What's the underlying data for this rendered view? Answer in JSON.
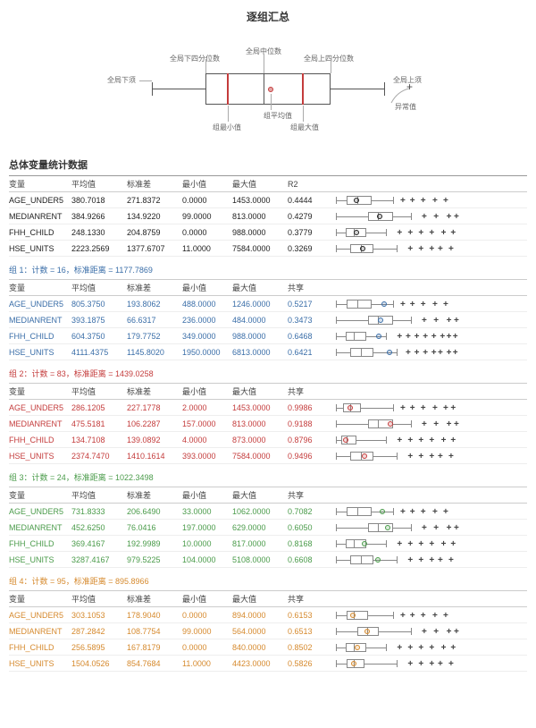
{
  "title": "逐组汇总",
  "legend": {
    "labels": {
      "lower_whisker": "全局下须",
      "q1": "全局下四分位数",
      "median": "全局中位数",
      "q3": "全局上四分位数",
      "upper_whisker": "全局上须",
      "mean": "组平均值",
      "min": "组最小值",
      "max": "组最大值",
      "outlier": "异常值"
    }
  },
  "columns_main": [
    "变量",
    "平均值",
    "标准差",
    "最小值",
    "最大值",
    "R2"
  ],
  "columns_group": [
    "变量",
    "平均值",
    "标准差",
    "最小值",
    "最大值",
    "共享"
  ],
  "main_section_title": "总体变量统计数据",
  "colors": {
    "black": "#222222",
    "blue": "#3a6ea8",
    "red": "#c43c3c",
    "green": "#4a9b4a",
    "orange": "#d68a2e"
  },
  "groups": [
    {
      "header": null,
      "color": "black",
      "rows": [
        {
          "v": "AGE_UNDER5",
          "mean": "380.7018",
          "std": "271.8372",
          "min": "0.0000",
          "max": "1453.0000",
          "r": "0.4444",
          "bp": {
            "w0": 5,
            "w1": 58,
            "b0": 15,
            "b1": 38,
            "m": 25,
            "d": 24,
            "o": [
              65,
              74,
              84,
              95,
              105
            ]
          }
        },
        {
          "v": "MEDIANRENT",
          "mean": "384.9266",
          "std": "134.9220",
          "min": "99.0000",
          "max": "813.0000",
          "r": "0.4279",
          "bp": {
            "w0": 5,
            "w1": 75,
            "b0": 35,
            "b1": 58,
            "m": 44,
            "d": 46,
            "o": [
              85,
              96,
              108,
              115
            ]
          }
        },
        {
          "v": "FHH_CHILD",
          "mean": "248.1330",
          "std": "204.8759",
          "min": "0.0000",
          "max": "988.0000",
          "r": "0.3779",
          "bp": {
            "w0": 5,
            "w1": 52,
            "b0": 14,
            "b1": 33,
            "m": 22,
            "d": 24,
            "o": [
              62,
              72,
              82,
              92,
              103,
              112
            ]
          }
        },
        {
          "v": "HSE_UNITS",
          "mean": "2223.2569",
          "std": "1377.6707",
          "min": "11.0000",
          "max": "7584.0000",
          "r": "0.3269",
          "bp": {
            "w0": 5,
            "w1": 62,
            "b0": 18,
            "b1": 40,
            "m": 28,
            "d": 30,
            "o": [
              72,
              82,
              92,
              100,
              110
            ]
          }
        }
      ]
    },
    {
      "header": "组 1：计数 = 16，标准距离 = 1177.7869",
      "color": "blue",
      "rows": [
        {
          "v": "AGE_UNDER5",
          "mean": "805.3750",
          "std": "193.8062",
          "min": "488.0000",
          "max": "1246.0000",
          "r": "0.5217",
          "bp": {
            "w0": 5,
            "w1": 58,
            "b0": 15,
            "b1": 38,
            "m": 25,
            "d": 50,
            "o": [
              65,
              74,
              84,
              95,
              105
            ]
          }
        },
        {
          "v": "MEDIANRENT",
          "mean": "393.1875",
          "std": "66.6317",
          "min": "236.0000",
          "max": "484.0000",
          "r": "0.3473",
          "bp": {
            "w0": 5,
            "w1": 75,
            "b0": 35,
            "b1": 58,
            "m": 44,
            "d": 47,
            "o": [
              85,
              96,
              108,
              115
            ]
          }
        },
        {
          "v": "FHH_CHILD",
          "mean": "604.3750",
          "std": "179.7752",
          "min": "349.0000",
          "max": "988.0000",
          "r": "0.6468",
          "bp": {
            "w0": 5,
            "w1": 52,
            "b0": 14,
            "b1": 33,
            "m": 22,
            "d": 45,
            "o": [
              62,
              70,
              78,
              86,
              94,
              102,
              108,
              114
            ]
          }
        },
        {
          "v": "HSE_UNITS",
          "mean": "4111.4375",
          "std": "1145.8020",
          "min": "1950.0000",
          "max": "6813.0000",
          "r": "0.6421",
          "bp": {
            "w0": 5,
            "w1": 62,
            "b0": 18,
            "b1": 40,
            "m": 28,
            "d": 55,
            "o": [
              70,
              78,
              86,
              94,
              100,
              108,
              114
            ]
          }
        }
      ]
    },
    {
      "header": "组 2：计数 = 83，标准距离 = 1439.0258",
      "color": "red",
      "rows": [
        {
          "v": "AGE_UNDER5",
          "mean": "286.1205",
          "std": "227.1778",
          "min": "2.0000",
          "max": "1453.0000",
          "r": "0.9986",
          "bp": {
            "w0": 5,
            "w1": 58,
            "b0": 12,
            "b1": 28,
            "m": 18,
            "d": 18,
            "o": [
              65,
              74,
              84,
              95,
              105,
              112
            ]
          }
        },
        {
          "v": "MEDIANRENT",
          "mean": "475.5181",
          "std": "106.2287",
          "min": "157.0000",
          "max": "813.0000",
          "r": "0.9188",
          "bp": {
            "w0": 5,
            "w1": 75,
            "b0": 35,
            "b1": 58,
            "m": 44,
            "d": 56,
            "o": [
              85,
              96,
              108,
              115
            ]
          }
        },
        {
          "v": "FHH_CHILD",
          "mean": "134.7108",
          "std": "139.0892",
          "min": "4.0000",
          "max": "873.0000",
          "r": "0.8796",
          "bp": {
            "w0": 5,
            "w1": 52,
            "b0": 10,
            "b1": 24,
            "m": 15,
            "d": 14,
            "o": [
              62,
              72,
              82,
              92,
              103,
              112
            ]
          }
        },
        {
          "v": "HSE_UNITS",
          "mean": "2374.7470",
          "std": "1410.1614",
          "min": "393.0000",
          "max": "7584.0000",
          "r": "0.9496",
          "bp": {
            "w0": 5,
            "w1": 62,
            "b0": 18,
            "b1": 40,
            "m": 28,
            "d": 32,
            "o": [
              72,
              82,
              92,
              100,
              110
            ]
          }
        }
      ]
    },
    {
      "header": "组 3：计数 = 24，标准距离 = 1022.3498",
      "color": "green",
      "rows": [
        {
          "v": "AGE_UNDER5",
          "mean": "731.8333",
          "std": "206.6490",
          "min": "33.0000",
          "max": "1062.0000",
          "r": "0.7082",
          "bp": {
            "w0": 5,
            "w1": 58,
            "b0": 15,
            "b1": 38,
            "m": 25,
            "d": 48,
            "o": [
              65,
              74,
              84,
              95,
              105
            ]
          }
        },
        {
          "v": "MEDIANRENT",
          "mean": "452.6250",
          "std": "76.0416",
          "min": "197.0000",
          "max": "629.0000",
          "r": "0.6050",
          "bp": {
            "w0": 5,
            "w1": 75,
            "b0": 35,
            "b1": 58,
            "m": 44,
            "d": 53,
            "o": [
              85,
              96,
              108,
              115
            ]
          }
        },
        {
          "v": "FHH_CHILD",
          "mean": "369.4167",
          "std": "192.9989",
          "min": "10.0000",
          "max": "817.0000",
          "r": "0.8168",
          "bp": {
            "w0": 5,
            "w1": 52,
            "b0": 14,
            "b1": 33,
            "m": 22,
            "d": 32,
            "o": [
              62,
              72,
              82,
              92,
              103,
              112
            ]
          }
        },
        {
          "v": "HSE_UNITS",
          "mean": "3287.4167",
          "std": "979.5225",
          "min": "104.0000",
          "max": "5108.0000",
          "r": "0.6608",
          "bp": {
            "w0": 5,
            "w1": 62,
            "b0": 18,
            "b1": 40,
            "m": 28,
            "d": 44,
            "o": [
              72,
              82,
              92,
              100,
              110
            ]
          }
        }
      ]
    },
    {
      "header": "组 4：计数 = 95，标准距离 = 895.8966",
      "color": "orange",
      "rows": [
        {
          "v": "AGE_UNDER5",
          "mean": "303.1053",
          "std": "178.9040",
          "min": "0.0000",
          "max": "894.0000",
          "r": "0.6153",
          "bp": {
            "w0": 5,
            "w1": 58,
            "b0": 15,
            "b1": 35,
            "m": 22,
            "d": 21,
            "o": [
              65,
              74,
              84,
              95,
              105
            ]
          }
        },
        {
          "v": "MEDIANRENT",
          "mean": "287.2842",
          "std": "108.7754",
          "min": "99.0000",
          "max": "564.0000",
          "r": "0.6513",
          "bp": {
            "w0": 5,
            "w1": 75,
            "b0": 25,
            "b1": 45,
            "m": 34,
            "d": 34,
            "o": [
              85,
              96,
              108,
              115
            ]
          }
        },
        {
          "v": "FHH_CHILD",
          "mean": "256.5895",
          "std": "167.8179",
          "min": "0.0000",
          "max": "840.0000",
          "r": "0.8502",
          "bp": {
            "w0": 5,
            "w1": 52,
            "b0": 14,
            "b1": 33,
            "m": 22,
            "d": 25,
            "o": [
              62,
              72,
              82,
              92,
              103,
              112
            ]
          }
        },
        {
          "v": "HSE_UNITS",
          "mean": "1504.0526",
          "std": "854.7684",
          "min": "11.0000",
          "max": "4423.0000",
          "r": "0.5826",
          "bp": {
            "w0": 5,
            "w1": 62,
            "b0": 15,
            "b1": 32,
            "m": 22,
            "d": 22,
            "o": [
              72,
              82,
              92,
              100,
              110
            ]
          }
        }
      ]
    }
  ]
}
